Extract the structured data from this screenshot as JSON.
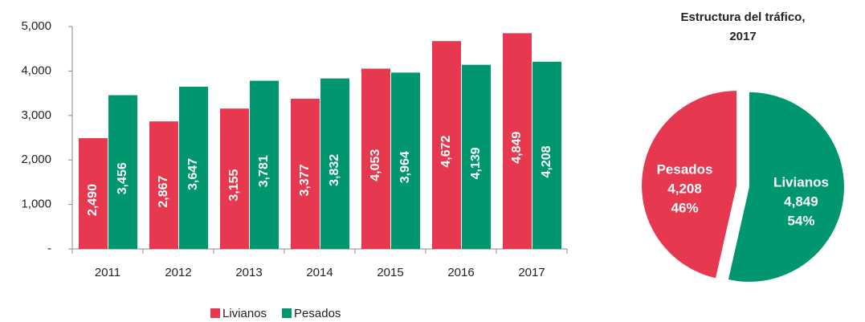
{
  "chart_data": [
    {
      "type": "bar",
      "categories": [
        "2011",
        "2012",
        "2013",
        "2014",
        "2015",
        "2016",
        "2017"
      ],
      "series": [
        {
          "name": "Livianos",
          "color": "#e63950",
          "values": [
            2490,
            2867,
            3155,
            3377,
            4053,
            4672,
            4849
          ],
          "value_labels": [
            "2,490",
            "2,867",
            "3,155",
            "3,377",
            "4,053",
            "4,672",
            "4,849"
          ]
        },
        {
          "name": "Pesados",
          "color": "#009670",
          "values": [
            3456,
            3647,
            3781,
            3832,
            3964,
            4139,
            4208
          ],
          "value_labels": [
            "3,456",
            "3,647",
            "3,781",
            "3,832",
            "3,964",
            "4,139",
            "4,208"
          ]
        }
      ],
      "ylim": [
        0,
        5000
      ],
      "yticks": [
        {
          "value": 0,
          "label": "-"
        },
        {
          "value": 1000,
          "label": "1,000"
        },
        {
          "value": 2000,
          "label": "2,000"
        },
        {
          "value": 3000,
          "label": "3,000"
        },
        {
          "value": 4000,
          "label": "4,000"
        },
        {
          "value": 5000,
          "label": "5,000"
        }
      ],
      "legend": "bottom"
    },
    {
      "type": "pie",
      "title": "Estructura del tráfico, 2017",
      "categories": [
        "Livianos",
        "Pesados"
      ],
      "values": [
        4849,
        4208
      ],
      "value_labels": [
        "4,849",
        "4,208"
      ],
      "percent_labels": [
        "54%",
        "46%"
      ],
      "colors": [
        "#009670",
        "#e63950"
      ]
    }
  ]
}
